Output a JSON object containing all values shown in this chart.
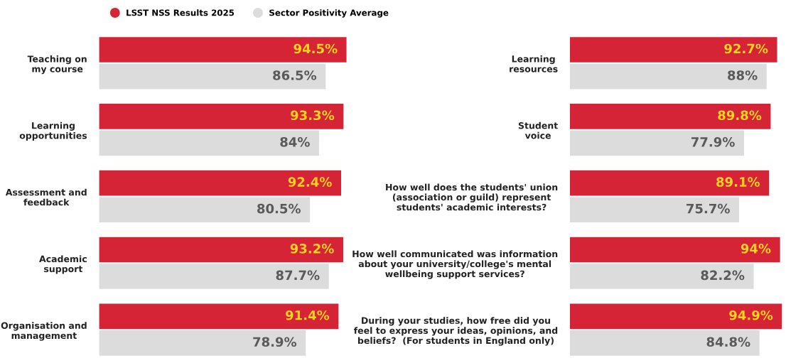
{
  "chart_data": [
    {
      "type": "bar",
      "orientation": "horizontal",
      "data_labels": true,
      "legend": "top",
      "grid": false,
      "tick_labels": "y",
      "categories": [
        "Teaching on\nmy course",
        "Learning\nopportunities",
        "Assessment and\nfeedback",
        "Academic\nsupport",
        "Organisation and\nmanagement"
      ],
      "series": [
        {
          "name": "LSST NSS Results 2025",
          "color": "#d62437",
          "values": [
            94.5,
            93.3,
            92.4,
            93.2,
            91.4
          ],
          "value_labels": [
            "94.5%",
            "93.3%",
            "92.4%",
            "93.2%",
            "91.4%"
          ]
        },
        {
          "name": "Sector Positivity Average",
          "color": "#dcdcdc",
          "values": [
            86.5,
            84,
            80.5,
            87.7,
            78.9
          ],
          "value_labels": [
            "86.5%",
            "84%",
            "80.5%",
            "87.7%",
            "78.9%"
          ]
        }
      ]
    },
    {
      "type": "bar",
      "orientation": "horizontal",
      "data_labels": true,
      "grid": false,
      "tick_labels": "y",
      "categories": [
        "Learning\nresources",
        "Student\nvoice",
        "How well does the students' union\n(association or guild) represent\nstudents' academic interests?",
        "How well communicated was information\nabout your university/college's mental\nwellbeing support services?",
        "During your studies, how free did you\nfeel to express your ideas, opinions, and\nbeliefs?  (For students in England only)"
      ],
      "series": [
        {
          "color": "#d62437",
          "values": [
            92.7,
            89.8,
            89.1,
            94,
            94.9
          ],
          "value_labels": [
            "92.7%",
            "89.8%",
            "89.1%",
            "94%",
            "94.9%"
          ]
        },
        {
          "color": "#dcdcdc",
          "values": [
            88,
            77.9,
            75.7,
            82.2,
            84.8
          ],
          "value_labels": [
            "88%",
            "77.9%",
            "75.7%",
            "82.2%",
            "84.8%"
          ]
        }
      ]
    }
  ]
}
